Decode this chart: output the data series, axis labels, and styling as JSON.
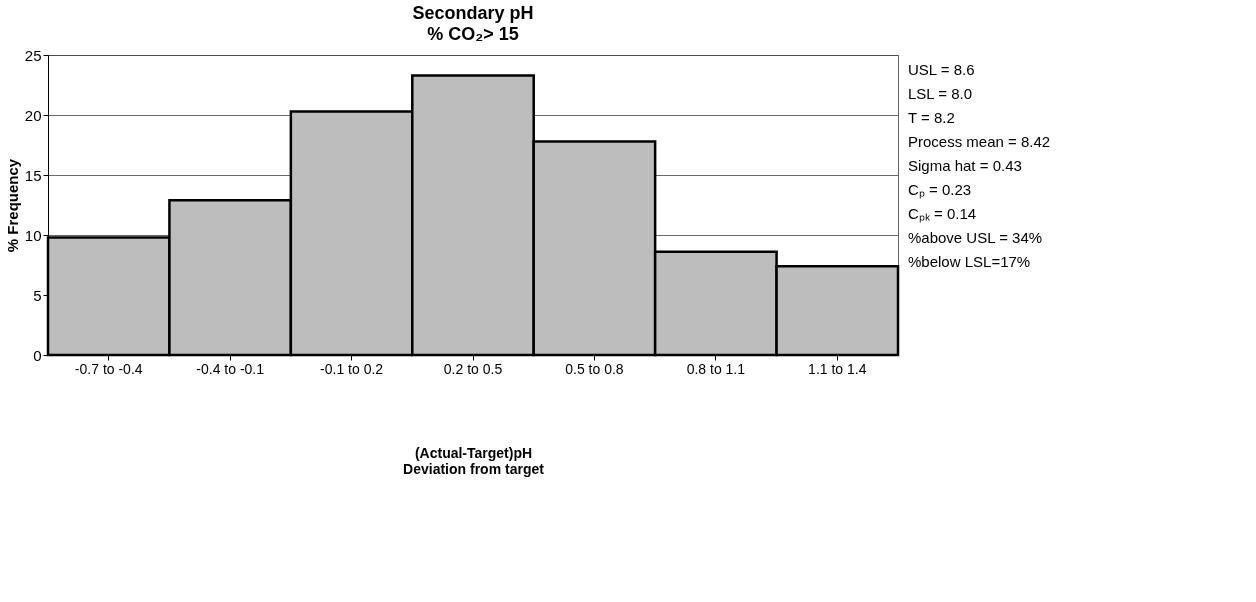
{
  "chart_data": {
    "type": "bar",
    "title": "Secondary pH",
    "subtitle": "% CO₂> 15",
    "xlabel": "(Actual-Target)pH\nDeviation from target",
    "ylabel": "% Frequency",
    "categories": [
      "-0.7 to -0.4",
      "-0.4 to -0.1",
      "-0.1 to 0.2",
      "0.2 to 0.5",
      "0.5 to 0.8",
      "0.8 to 1.1",
      "1.1 to 1.4"
    ],
    "values": [
      9.8,
      12.9,
      20.3,
      23.3,
      17.8,
      8.6,
      7.4
    ],
    "color": "#bdbdbd",
    "ylim": [
      0,
      25
    ],
    "yticks": [
      0,
      5,
      10,
      15,
      20,
      25
    ],
    "grid": "y",
    "annotations": [
      "USL = 8.6",
      "LSL = 8.0",
      "T = 8.2",
      "Process mean = 8.42",
      "Sigma hat = 0.43",
      "Cₚ = 0.23",
      "Cₚₖ = 0.14",
      "%above USL = 34%",
      "%below LSL=17%"
    ]
  }
}
